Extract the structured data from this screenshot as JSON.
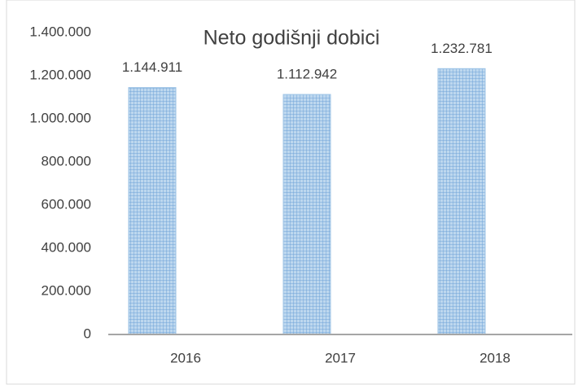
{
  "chart_data": {
    "type": "bar",
    "title": "Neto godišnji dobici",
    "categories": [
      "2016",
      "2017",
      "2018"
    ],
    "values": [
      1144911,
      1112942,
      1232781
    ],
    "value_labels": [
      "1.144.911",
      "1.112.942",
      "1.232.781"
    ],
    "color": "#9dc3e6",
    "ylim": [
      0,
      1400000
    ],
    "yticks": [
      0,
      {
        "value": 200000,
        "label": "200.000"
      },
      {
        "value": 400000,
        "label": "400.000"
      },
      {
        "value": 600000,
        "label": "600.000"
      },
      {
        "value": 800000,
        "label": "800.000"
      },
      {
        "value": 1000000,
        "label": "1.000.000"
      },
      {
        "value": 1200000,
        "label": "1.200.000"
      },
      {
        "value": 1400000,
        "label": "1.400.000"
      }
    ],
    "grid": false
  }
}
